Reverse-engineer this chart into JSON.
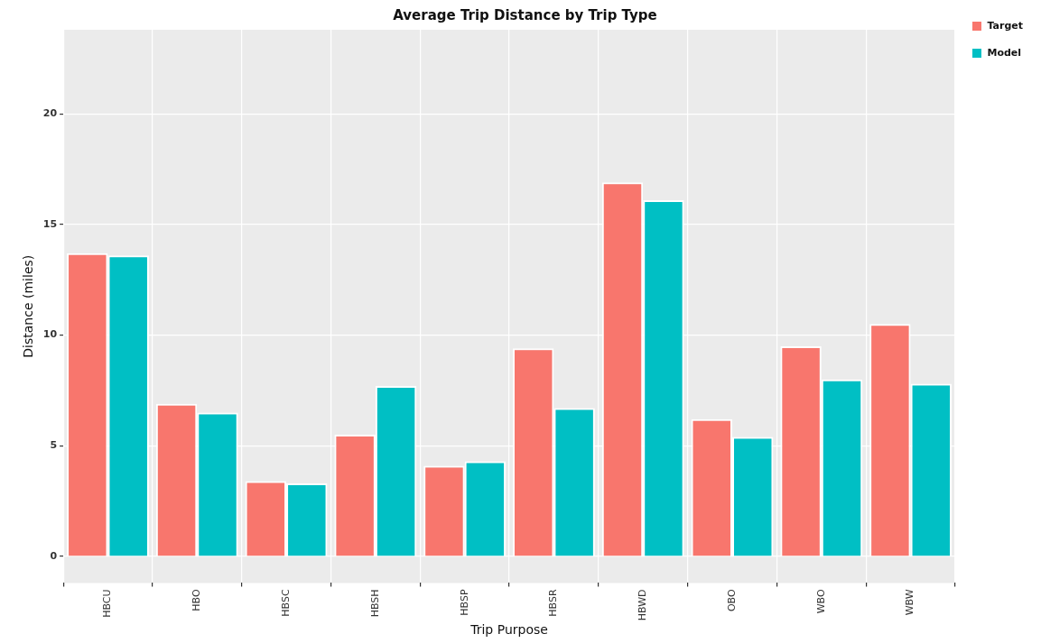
{
  "chart_data": {
    "type": "bar",
    "title": "Average Trip Distance by Trip Type",
    "xlabel": "Trip Purpose",
    "ylabel": "Distance (miles)",
    "categories": [
      "HBCU",
      "HBO",
      "HBSC",
      "HBSH",
      "HBSP",
      "HBSR",
      "HBWD",
      "OBO",
      "WBO",
      "WBW"
    ],
    "series": [
      {
        "name": "Target",
        "color": "#f8766d",
        "values": [
          13.7,
          6.9,
          3.4,
          5.5,
          4.1,
          9.4,
          16.9,
          6.2,
          9.5,
          10.5
        ]
      },
      {
        "name": "Model",
        "color": "#00bfc4",
        "values": [
          13.6,
          6.5,
          3.3,
          7.7,
          4.3,
          6.7,
          16.1,
          5.4,
          8.0,
          7.8
        ]
      }
    ],
    "ylim": [
      -1.2,
      23.8
    ],
    "yticks": [
      0,
      5,
      10,
      15,
      20
    ],
    "grid": true,
    "legend": "top right"
  }
}
